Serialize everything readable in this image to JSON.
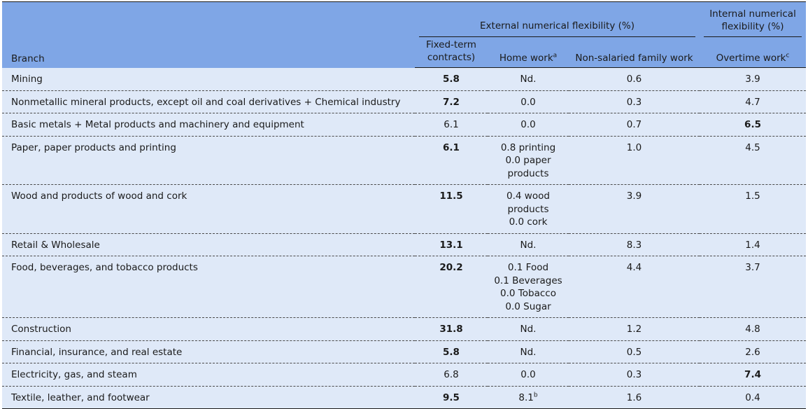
{
  "header": {
    "branch": "Branch",
    "external_group": "External numerical flexibility (%)",
    "internal_group": "Internal numerical flexibility (%)",
    "cols": [
      {
        "label": "Fixed-term contracts)",
        "sup": ""
      },
      {
        "label": "Home work",
        "sup": "a"
      },
      {
        "label": "Non-salaried family work",
        "sup": ""
      },
      {
        "label": "Overtime work",
        "sup": "c"
      }
    ]
  },
  "rows": [
    {
      "branch": "Mining",
      "fixed": "5.8",
      "fixed_bold": true,
      "home": [
        "Nd."
      ],
      "home_sup": "",
      "family": "0.6",
      "overtime": "3.9",
      "overtime_bold": false
    },
    {
      "branch": "Nonmetallic mineral products, except oil and coal derivatives + Chemical industry",
      "fixed": "7.2",
      "fixed_bold": true,
      "home": [
        "0.0"
      ],
      "home_sup": "",
      "family": "0.3",
      "overtime": "4.7",
      "overtime_bold": false
    },
    {
      "branch": "Basic metals + Metal products and machinery and equipment",
      "fixed": "6.1",
      "fixed_bold": false,
      "home": [
        "0.0"
      ],
      "home_sup": "",
      "family": "0.7",
      "overtime": "6.5",
      "overtime_bold": true
    },
    {
      "branch": "Paper, paper products and printing",
      "fixed": "6.1",
      "fixed_bold": true,
      "home": [
        "0.8 printing",
        "0.0 paper products"
      ],
      "home_sup": "",
      "family": "1.0",
      "overtime": "4.5",
      "overtime_bold": false
    },
    {
      "branch": "Wood and products of wood and cork",
      "fixed": "11.5",
      "fixed_bold": true,
      "home": [
        "0.4 wood products",
        "0.0 cork"
      ],
      "home_sup": "",
      "family": "3.9",
      "overtime": "1.5",
      "overtime_bold": false
    },
    {
      "branch": "Retail & Wholesale",
      "fixed": "13.1",
      "fixed_bold": true,
      "home": [
        "Nd."
      ],
      "home_sup": "",
      "family": "8.3",
      "overtime": "1.4",
      "overtime_bold": false
    },
    {
      "branch": "Food, beverages, and tobacco products",
      "fixed": "20.2",
      "fixed_bold": true,
      "home": [
        "0.1 Food",
        "0.1 Beverages",
        "0.0 Tobacco",
        "0.0 Sugar"
      ],
      "home_sup": "",
      "family": "4.4",
      "overtime": "3.7",
      "overtime_bold": false
    },
    {
      "branch": "Construction",
      "fixed": "31.8",
      "fixed_bold": true,
      "home": [
        "Nd."
      ],
      "home_sup": "",
      "family": "1.2",
      "overtime": "4.8",
      "overtime_bold": false
    },
    {
      "branch": "Financial, insurance, and real estate",
      "fixed": "5.8",
      "fixed_bold": true,
      "home": [
        "Nd."
      ],
      "home_sup": "",
      "family": "0.5",
      "overtime": "2.6",
      "overtime_bold": false
    },
    {
      "branch": "Electricity, gas, and steam",
      "fixed": "6.8",
      "fixed_bold": false,
      "home": [
        "0.0"
      ],
      "home_sup": "",
      "family": "0.3",
      "overtime": "7.4",
      "overtime_bold": true
    },
    {
      "branch": "Textile, leather, and footwear",
      "fixed": "9.5",
      "fixed_bold": true,
      "home": [
        "8.1"
      ],
      "home_sup": "b",
      "family": "1.6",
      "overtime": "0.4",
      "overtime_bold": false
    }
  ]
}
